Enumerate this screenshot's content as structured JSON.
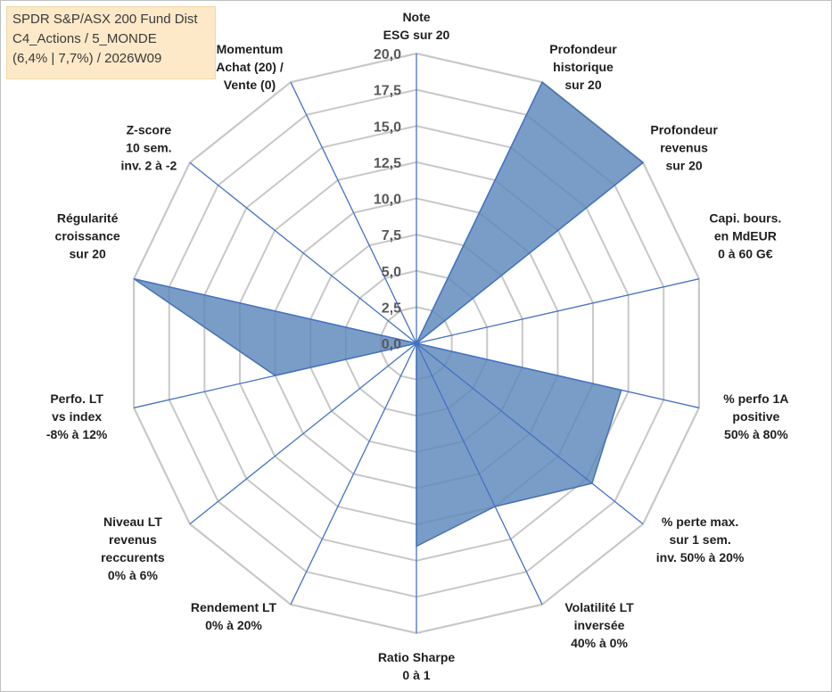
{
  "chart_data": {
    "type": "radar",
    "title_lines": [
      "SPDR S&P/ASX 200 Fund Dist",
      "C4_Actions / 5_MONDE",
      "(6,4% | 7,7%) / 2026W09"
    ],
    "axis_labels": [
      [
        "Note",
        "ESG sur 20"
      ],
      [
        "Profondeur",
        "historique",
        "sur 20"
      ],
      [
        "Profondeur",
        "revenus",
        "sur 20"
      ],
      [
        "Capi. bours.",
        "en MdEUR",
        "0 à 60 G€"
      ],
      [
        "% perfo 1A",
        "positive",
        "50% à 80%"
      ],
      [
        "% perte max.",
        "sur 1 sem.",
        "inv. 50% à 20%"
      ],
      [
        "Volatilité LT",
        "inversée",
        "40% à 0%"
      ],
      [
        "Ratio Sharpe",
        "0 à 1"
      ],
      [
        "Rendement LT",
        "0% à 20%"
      ],
      [
        "Niveau LT",
        "revenus",
        "reccurents",
        "0% à 6%"
      ],
      [
        "Perfo. LT",
        "vs index",
        "-8% à 12%"
      ],
      [
        "Régularité",
        "croissance",
        "sur 20"
      ],
      [
        "Z-score",
        "10 sem.",
        "inv. 2 à -2"
      ],
      [
        "Momentum",
        "Achat (20) /",
        "Vente (0)"
      ]
    ],
    "tick_labels": [
      "0,0",
      "2,5",
      "5,0",
      "7,5",
      "10,0",
      "12,5",
      "15,0",
      "17,5",
      "20,0"
    ],
    "rmax": 20,
    "step": 2.5,
    "values": [
      0,
      20,
      20,
      0,
      14.5,
      15.5,
      12.5,
      14,
      0,
      0,
      10,
      20,
      0,
      0
    ],
    "fill_color": "#5b87bb",
    "line_color": "#4a72b0",
    "grid_color": "#c8c8c8"
  }
}
